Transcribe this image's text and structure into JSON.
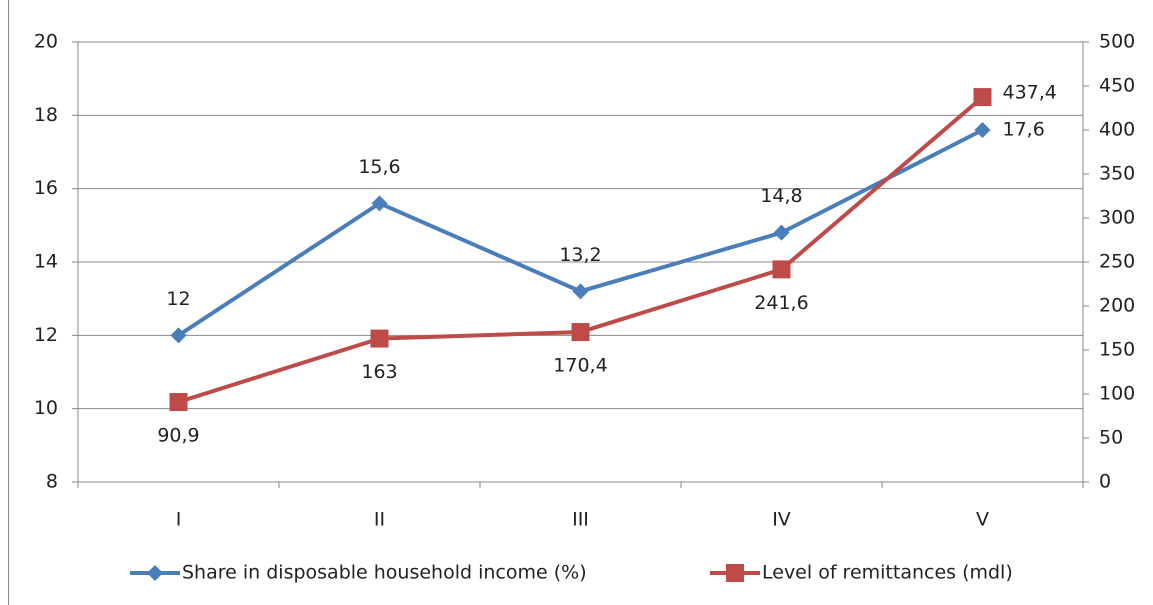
{
  "chart_data": {
    "type": "line",
    "categories": [
      "I",
      "II",
      "III",
      "IV",
      "V"
    ],
    "series": [
      {
        "name": "Share in disposable household income (%)",
        "color": "#4a7ebb",
        "marker": "diamond",
        "values": [
          12,
          15.6,
          13.2,
          14.8,
          17.6
        ],
        "value_labels": [
          "12",
          "15,6",
          "13,2",
          "14,8",
          "17,6"
        ]
      },
      {
        "name": "Level of remittances (mdl)",
        "color": "#be4b48",
        "marker": "square",
        "axis": "y2",
        "values": [
          90.9,
          163,
          170.4,
          241.6,
          437.4
        ],
        "value_labels": [
          "90,9",
          "163",
          "170,4",
          "241,6",
          "437,4"
        ]
      }
    ],
    "ylim": [
      8,
      20
    ],
    "yticks": [
      8,
      10,
      12,
      14,
      16,
      18,
      20
    ],
    "y2lim": [
      0,
      500
    ],
    "y2ticks": [
      0,
      50,
      100,
      150,
      200,
      250,
      300,
      350,
      400,
      450,
      500
    ],
    "grid": true,
    "legend": "bottom"
  }
}
